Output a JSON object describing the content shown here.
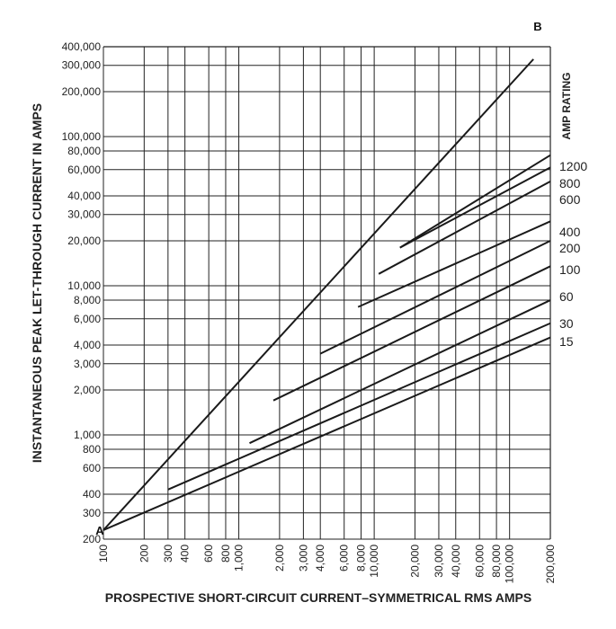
{
  "chart_data": {
    "type": "line",
    "xlabel": "PROSPECTIVE SHORT-CIRCUIT CURRENT–SYMMETRICAL RMS AMPS",
    "ylabel": "INSTANTANEOUS PEAK LET-THROUGH CURRENT IN AMPS",
    "right_label": "AMP RATING",
    "xscale": "log",
    "yscale": "log",
    "xlim": [
      100,
      200000
    ],
    "ylim": [
      200,
      400000
    ],
    "grid": true,
    "x_tick_labels": [
      {
        "v": 100,
        "label": "100"
      },
      {
        "v": 200,
        "label": "200"
      },
      {
        "v": 300,
        "label": "300"
      },
      {
        "v": 400,
        "label": "400"
      },
      {
        "v": 600,
        "label": "600"
      },
      {
        "v": 800,
        "label": "800"
      },
      {
        "v": 1000,
        "label": "1,000"
      },
      {
        "v": 2000,
        "label": "2,000"
      },
      {
        "v": 3000,
        "label": "3,000"
      },
      {
        "v": 4000,
        "label": "4,000"
      },
      {
        "v": 6000,
        "label": "6,000"
      },
      {
        "v": 8000,
        "label": "8,000"
      },
      {
        "v": 10000,
        "label": "10,000"
      },
      {
        "v": 20000,
        "label": "20,000"
      },
      {
        "v": 30000,
        "label": "30,000"
      },
      {
        "v": 40000,
        "label": "40,000"
      },
      {
        "v": 60000,
        "label": "60,000"
      },
      {
        "v": 80000,
        "label": "80,000"
      },
      {
        "v": 100000,
        "label": "100,000"
      },
      {
        "v": 200000,
        "label": "200,000"
      }
    ],
    "y_tick_labels": [
      {
        "v": 200,
        "label": "200"
      },
      {
        "v": 300,
        "label": "300"
      },
      {
        "v": 400,
        "label": "400"
      },
      {
        "v": 600,
        "label": "600"
      },
      {
        "v": 800,
        "label": "800"
      },
      {
        "v": 1000,
        "label": "1,000"
      },
      {
        "v": 2000,
        "label": "2,000"
      },
      {
        "v": 3000,
        "label": "3,000"
      },
      {
        "v": 4000,
        "label": "4,000"
      },
      {
        "v": 6000,
        "label": "6,000"
      },
      {
        "v": 8000,
        "label": "8,000"
      },
      {
        "v": 10000,
        "label": "10,000"
      },
      {
        "v": 20000,
        "label": "20,000"
      },
      {
        "v": 30000,
        "label": "30,000"
      },
      {
        "v": 40000,
        "label": "40,000"
      },
      {
        "v": 60000,
        "label": "60,000"
      },
      {
        "v": 80000,
        "label": "80,000"
      },
      {
        "v": 100000,
        "label": "100,000"
      },
      {
        "v": 200000,
        "label": "200,000"
      },
      {
        "v": 300000,
        "label": "300,000"
      },
      {
        "v": 400000,
        "label": "400,000"
      }
    ],
    "ab_line": {
      "start_label": "A",
      "end_label": "B",
      "points": [
        [
          100,
          230
        ],
        [
          150000,
          330000
        ]
      ]
    },
    "series": [
      {
        "name": "1200",
        "points": [
          [
            15500,
            18000
          ],
          [
            200000,
            75000
          ]
        ]
      },
      {
        "name": "800",
        "points": [
          [
            15500,
            18000
          ],
          [
            200000,
            62000
          ]
        ]
      },
      {
        "name": "600",
        "points": [
          [
            10800,
            12000
          ],
          [
            200000,
            50000
          ]
        ]
      },
      {
        "name": "400",
        "points": [
          [
            7600,
            7200
          ],
          [
            200000,
            27000
          ]
        ]
      },
      {
        "name": "200",
        "points": [
          [
            4000,
            3500
          ],
          [
            200000,
            20000
          ]
        ]
      },
      {
        "name": "100",
        "points": [
          [
            1800,
            1700
          ],
          [
            200000,
            13500
          ]
        ]
      },
      {
        "name": "60",
        "points": [
          [
            1200,
            880
          ],
          [
            200000,
            8000
          ]
        ]
      },
      {
        "name": "30",
        "points": [
          [
            300,
            430
          ],
          [
            200000,
            5600
          ]
        ]
      },
      {
        "name": "15",
        "points": [
          [
            100,
            230
          ],
          [
            200000,
            4500
          ]
        ]
      }
    ]
  }
}
